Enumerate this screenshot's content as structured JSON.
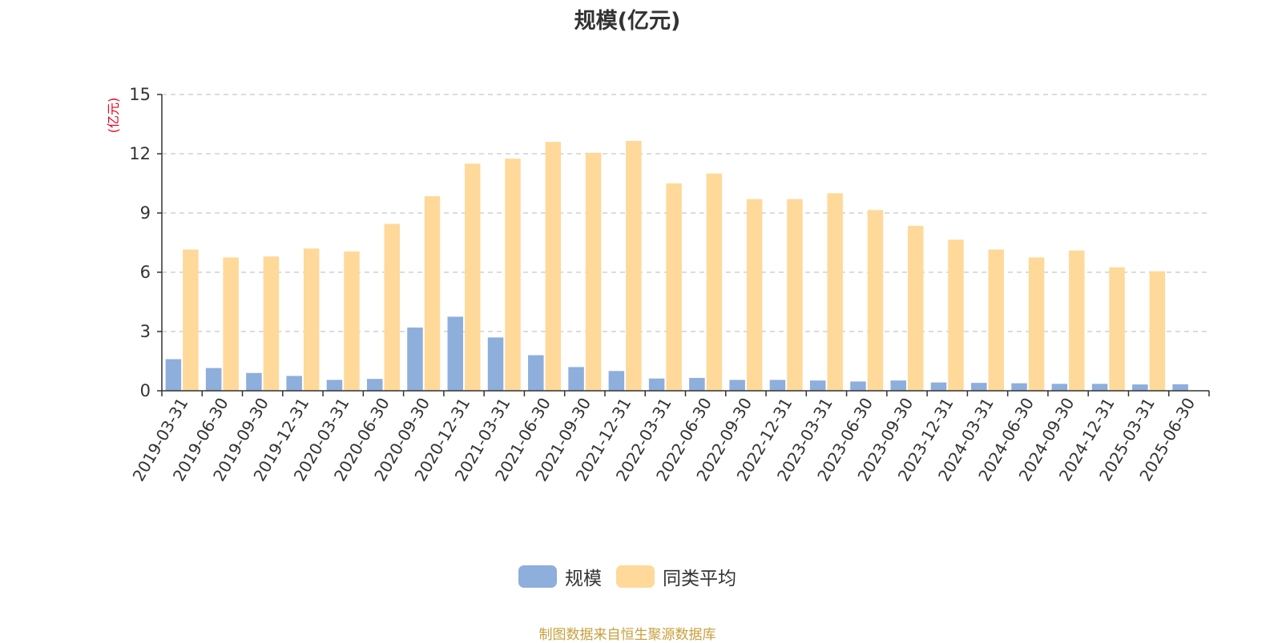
{
  "chart_data": {
    "type": "bar",
    "title": "规模(亿元)",
    "ylabel": "(亿元)",
    "ylim": [
      0,
      15
    ],
    "yticks": [
      0,
      3,
      6,
      9,
      12,
      15
    ],
    "grid": true,
    "legend_position": "bottom-center",
    "categories": [
      "2019-03-31",
      "2019-06-30",
      "2019-09-30",
      "2019-12-31",
      "2020-03-31",
      "2020-06-30",
      "2020-09-30",
      "2020-12-31",
      "2021-03-31",
      "2021-06-30",
      "2021-09-30",
      "2021-12-31",
      "2022-03-31",
      "2022-06-30",
      "2022-09-30",
      "2022-12-31",
      "2023-03-31",
      "2023-06-30",
      "2023-09-30",
      "2023-12-31",
      "2024-03-31",
      "2024-06-30",
      "2024-09-30",
      "2024-12-31",
      "2025-03-31",
      "2025-06-30"
    ],
    "series": [
      {
        "name": "规模",
        "color": "#8eaedc",
        "values": [
          1.6,
          1.15,
          0.9,
          0.75,
          0.55,
          0.6,
          3.2,
          3.75,
          2.7,
          1.8,
          1.2,
          1.0,
          0.62,
          0.65,
          0.55,
          0.55,
          0.52,
          0.47,
          0.52,
          0.42,
          0.4,
          0.38,
          0.35,
          0.35,
          0.32,
          0.33
        ]
      },
      {
        "name": "同类平均",
        "color": "#ffd99a",
        "values": [
          7.15,
          6.75,
          6.8,
          7.2,
          7.05,
          8.45,
          9.85,
          11.5,
          11.75,
          12.6,
          12.05,
          12.65,
          10.5,
          11.0,
          9.7,
          9.7,
          10.0,
          9.15,
          8.35,
          7.65,
          7.15,
          6.75,
          7.1,
          6.25,
          6.05,
          null
        ]
      }
    ]
  },
  "source_note": "制图数据来自恒生聚源数据库"
}
